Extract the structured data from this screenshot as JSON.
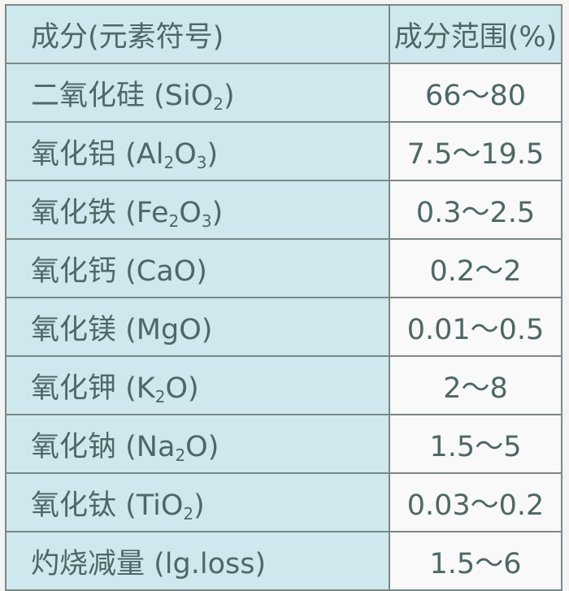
{
  "header": {
    "component": "成分(元素符号)",
    "range": "成分范围(%)"
  },
  "rows": [
    {
      "name": "二氧化硅 ",
      "formula": [
        {
          "t": "(SiO"
        },
        {
          "s": "2"
        },
        {
          "t": ")"
        }
      ],
      "range": "66～80"
    },
    {
      "name": "氧化铝 ",
      "formula": [
        {
          "t": "(Al"
        },
        {
          "s": "2"
        },
        {
          "t": "O"
        },
        {
          "s": "3"
        },
        {
          "t": ")"
        }
      ],
      "range": "7.5～19.5"
    },
    {
      "name": "氧化铁 ",
      "formula": [
        {
          "t": "(Fe"
        },
        {
          "s": "2"
        },
        {
          "t": "O"
        },
        {
          "s": "3"
        },
        {
          "t": ")"
        }
      ],
      "range": "0.3～2.5"
    },
    {
      "name": "氧化钙 ",
      "formula": [
        {
          "t": "(CaO)"
        }
      ],
      "range": "0.2～2"
    },
    {
      "name": "氧化镁 ",
      "formula": [
        {
          "t": "(MgO)"
        }
      ],
      "range": "0.01～0.5"
    },
    {
      "name": "氧化钾 ",
      "formula": [
        {
          "t": "(K"
        },
        {
          "s": "2"
        },
        {
          "t": "O)"
        }
      ],
      "range": "2～8"
    },
    {
      "name": "氧化钠 ",
      "formula": [
        {
          "t": "(Na"
        },
        {
          "s": "2"
        },
        {
          "t": "O)"
        }
      ],
      "range": "1.5～5"
    },
    {
      "name": "氧化钛 ",
      "formula": [
        {
          "t": "(TiO"
        },
        {
          "s": "2"
        },
        {
          "t": ")"
        }
      ],
      "range": "0.03～0.2"
    },
    {
      "name": "灼烧减量 ",
      "formula": [
        {
          "t": "(lg.loss)"
        }
      ],
      "range": "1.5～6"
    }
  ],
  "colors": {
    "label_bg": "#cfe8ee",
    "value_bg": "#f8f9f8",
    "text": "#4d6866",
    "border": "#6d7b7b"
  }
}
